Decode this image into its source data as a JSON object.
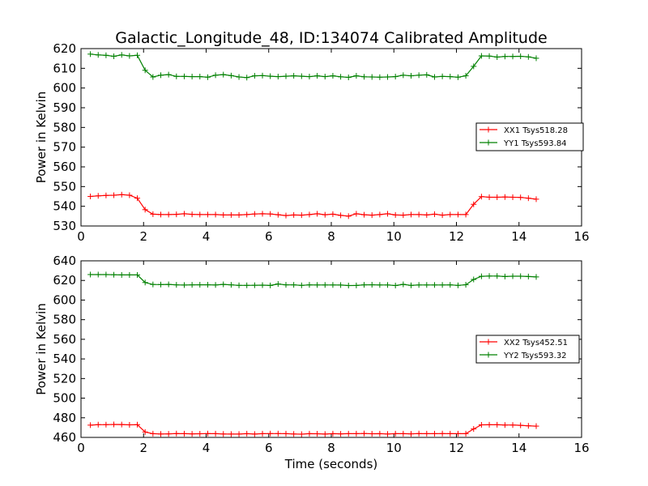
{
  "figure": {
    "title": "Galactic_Longitude_48, ID:134074 Calibrated Amplitude",
    "xlabel": "Time (seconds)"
  },
  "chart_data": [
    {
      "type": "line",
      "title": "Galactic_Longitude_48, ID:134074 Calibrated Amplitude",
      "xlabel": "",
      "ylabel": "Power in Kelvin",
      "xlim": [
        0,
        16
      ],
      "ylim": [
        530,
        620
      ],
      "xticks": [
        0,
        2,
        4,
        6,
        8,
        10,
        12,
        14,
        16
      ],
      "yticks": [
        530,
        540,
        550,
        560,
        570,
        580,
        590,
        600,
        610,
        620
      ],
      "grid": false,
      "legend_position": "right",
      "x": [
        0.3,
        0.55,
        0.8,
        1.05,
        1.3,
        1.55,
        1.8,
        2.05,
        2.3,
        2.55,
        2.8,
        3.05,
        3.3,
        3.55,
        3.8,
        4.05,
        4.3,
        4.55,
        4.8,
        5.05,
        5.3,
        5.55,
        5.8,
        6.05,
        6.3,
        6.55,
        6.8,
        7.05,
        7.3,
        7.55,
        7.8,
        8.05,
        8.3,
        8.55,
        8.8,
        9.05,
        9.3,
        9.55,
        9.8,
        10.05,
        10.3,
        10.55,
        10.8,
        11.05,
        11.3,
        11.55,
        11.8,
        12.05,
        12.3,
        12.55,
        12.8,
        13.05,
        13.3,
        13.55,
        13.8,
        14.05,
        14.3,
        14.55
      ],
      "series": [
        {
          "name": "XX1 Tsys518.28",
          "color": "#ff0000",
          "values": [
            545,
            545.3,
            545.5,
            545.6,
            545.9,
            545.6,
            544.1,
            538.3,
            536,
            535.8,
            535.8,
            535.9,
            536.2,
            535.9,
            535.8,
            535.8,
            535.8,
            535.6,
            535.6,
            535.6,
            535.8,
            536.1,
            536.2,
            536.1,
            535.7,
            535.3,
            535.6,
            535.5,
            535.8,
            536.2,
            535.7,
            536.0,
            535.4,
            535.0,
            536.2,
            535.7,
            535.5,
            535.8,
            536.2,
            535.6,
            535.5,
            535.8,
            535.8,
            535.6,
            536.0,
            535.5,
            535.8,
            535.8,
            535.8,
            541,
            544.9,
            544.6,
            544.6,
            544.7,
            544.6,
            544.5,
            544.1,
            543.6
          ],
          "marker": "+"
        },
        {
          "name": "YY1 Tsys593.84",
          "color": "#008000",
          "values": [
            617.2,
            616.8,
            616.6,
            616.1,
            616.8,
            616.3,
            616.6,
            609.0,
            605.6,
            606.5,
            606.8,
            605.9,
            605.9,
            605.8,
            605.8,
            605.5,
            606.5,
            606.8,
            606.3,
            605.6,
            605.3,
            606.2,
            606.3,
            606.0,
            605.8,
            606.0,
            606.2,
            606.0,
            605.8,
            606.2,
            605.8,
            606.2,
            605.7,
            605.4,
            606.2,
            605.7,
            605.6,
            605.5,
            605.6,
            605.8,
            606.5,
            606.2,
            606.5,
            606.7,
            605.6,
            605.9,
            605.8,
            605.5,
            606.2,
            611.0,
            616.3,
            616.2,
            615.7,
            616.0,
            616.0,
            616.1,
            615.8,
            615.1
          ],
          "marker": "+"
        }
      ]
    },
    {
      "type": "line",
      "title": "",
      "xlabel": "Time (seconds)",
      "ylabel": "Power in Kelvin",
      "xlim": [
        0,
        16
      ],
      "ylim": [
        460,
        640
      ],
      "xticks": [
        0,
        2,
        4,
        6,
        8,
        10,
        12,
        14,
        16
      ],
      "yticks": [
        460,
        480,
        500,
        520,
        540,
        560,
        580,
        600,
        620,
        640
      ],
      "grid": false,
      "legend_position": "right",
      "x": [
        0.3,
        0.55,
        0.8,
        1.05,
        1.3,
        1.55,
        1.8,
        2.05,
        2.3,
        2.55,
        2.8,
        3.05,
        3.3,
        3.55,
        3.8,
        4.05,
        4.3,
        4.55,
        4.8,
        5.05,
        5.3,
        5.55,
        5.8,
        6.05,
        6.3,
        6.55,
        6.8,
        7.05,
        7.3,
        7.55,
        7.8,
        8.05,
        8.3,
        8.55,
        8.8,
        9.05,
        9.3,
        9.55,
        9.8,
        10.05,
        10.3,
        10.55,
        10.8,
        11.05,
        11.3,
        11.55,
        11.8,
        12.05,
        12.3,
        12.55,
        12.8,
        13.05,
        13.3,
        13.55,
        13.8,
        14.05,
        14.3,
        14.55
      ],
      "series": [
        {
          "name": "XX2 Tsys452.51",
          "color": "#ff0000",
          "values": [
            472.5,
            473,
            473,
            473.2,
            473.1,
            472.8,
            473,
            465.5,
            463.8,
            463.5,
            463.6,
            463.9,
            463.8,
            463.6,
            463.7,
            463.9,
            463.8,
            463.5,
            463.4,
            463.4,
            463.8,
            463.4,
            463.8,
            463.9,
            463.9,
            463.8,
            463.5,
            463.3,
            463.8,
            463.7,
            463.4,
            463.8,
            463.6,
            463.8,
            463.8,
            464.0,
            463.7,
            463.8,
            463.5,
            463.8,
            463.8,
            463.6,
            463.9,
            463.8,
            463.8,
            463.9,
            463.8,
            463.8,
            463.8,
            468.6,
            472.8,
            472.9,
            472.9,
            472.6,
            472.6,
            472.3,
            471.8,
            471.5
          ],
          "marker": "+"
        },
        {
          "name": "YY2 Tsys593.32",
          "color": "#008000",
          "values": [
            626.0,
            626.0,
            626.0,
            625.8,
            625.6,
            625.6,
            625.6,
            617.9,
            615.9,
            615.8,
            616.0,
            615.5,
            615.3,
            615.5,
            615.6,
            615.6,
            615.4,
            616.0,
            615.5,
            615.0,
            615.0,
            615.1,
            615.2,
            614.9,
            616.4,
            615.5,
            615.5,
            615.0,
            615.5,
            615.4,
            615.4,
            615.4,
            615.3,
            614.8,
            614.9,
            615.5,
            615.6,
            615.4,
            615.4,
            614.8,
            616.0,
            615.0,
            615.4,
            615.4,
            615.4,
            615.4,
            615.5,
            615.0,
            615.6,
            621.0,
            624.2,
            624.5,
            624.5,
            624.0,
            624.3,
            624.3,
            624.0,
            623.6
          ],
          "marker": "+"
        }
      ]
    }
  ]
}
